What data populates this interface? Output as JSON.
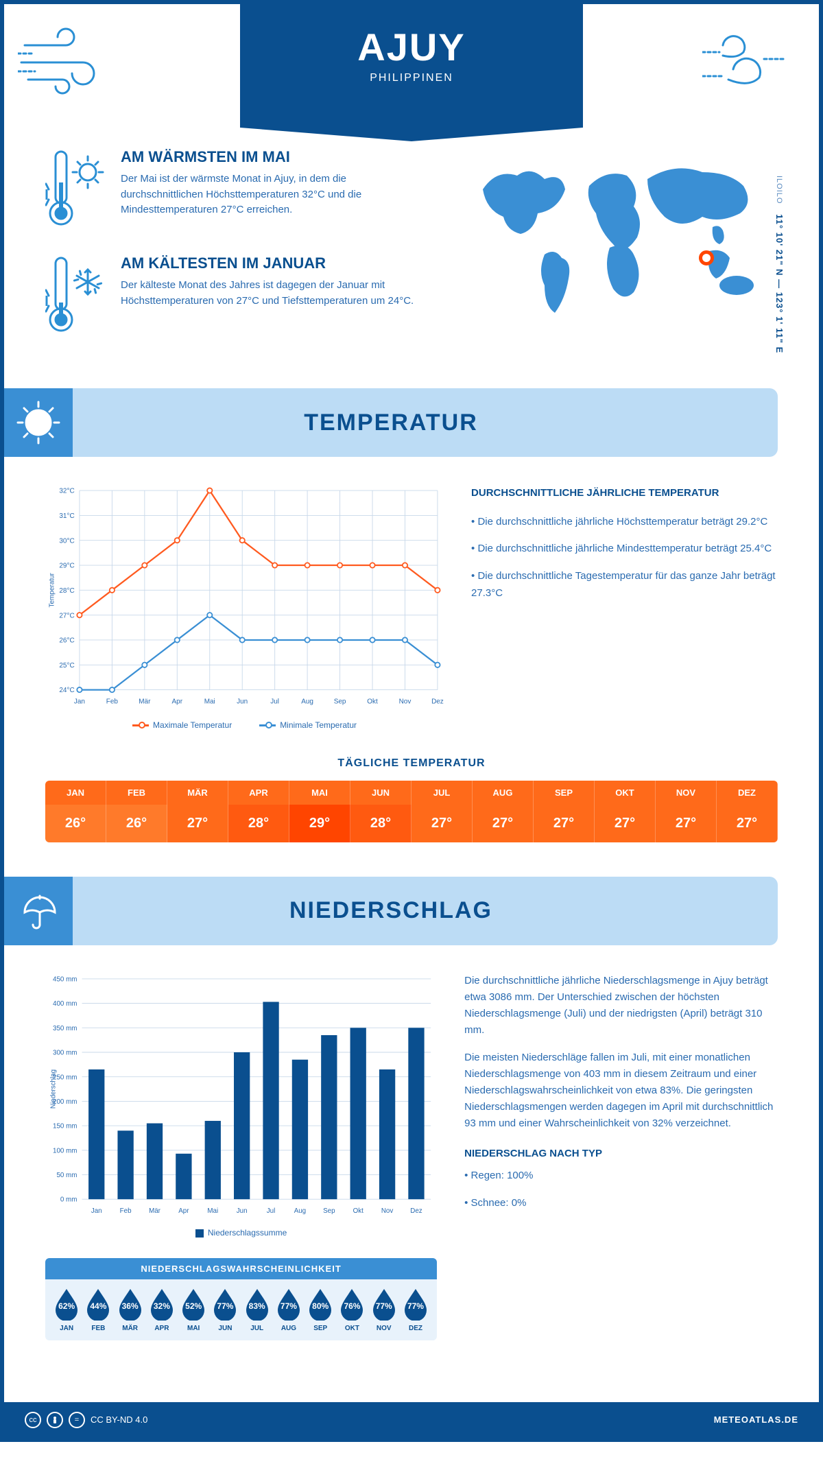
{
  "colors": {
    "primary": "#0a4f8f",
    "secondary": "#3a8fd4",
    "light": "#bcdcf5",
    "accent_warm": "#ff5a1f",
    "accent_cool": "#3a8fd4",
    "grid": "#c8d8ea",
    "text": "#2a6bb0",
    "pin": "#ff4500"
  },
  "header": {
    "title": "AJUY",
    "subtitle": "PHILIPPINEN"
  },
  "coords": {
    "lat": "11° 10' 21\" N",
    "sep": "—",
    "lon": "123° 1' 11\" E",
    "region": "ILOILO"
  },
  "warmest": {
    "title": "AM WÄRMSTEN IM MAI",
    "text": "Der Mai ist der wärmste Monat in Ajuy, in dem die durchschnittlichen Höchsttemperaturen 32°C und die Mindesttemperaturen 27°C erreichen."
  },
  "coldest": {
    "title": "AM KÄLTESTEN IM JANUAR",
    "text": "Der kälteste Monat des Jahres ist dagegen der Januar mit Höchsttemperaturen von 27°C und Tiefsttemperaturen um 24°C."
  },
  "section_temp": "TEMPERATUR",
  "section_precip": "NIEDERSCHLAG",
  "months": [
    "Jan",
    "Feb",
    "Mär",
    "Apr",
    "Mai",
    "Jun",
    "Jul",
    "Aug",
    "Sep",
    "Okt",
    "Nov",
    "Dez"
  ],
  "months_upper": [
    "JAN",
    "FEB",
    "MÄR",
    "APR",
    "MAI",
    "JUN",
    "JUL",
    "AUG",
    "SEP",
    "OKT",
    "NOV",
    "DEZ"
  ],
  "temp_chart": {
    "type": "line",
    "ylabel": "Temperatur",
    "ylim": [
      24,
      32
    ],
    "ytick_step": 1,
    "y_suffix": "°C",
    "max_label": "Maximale Temperatur",
    "min_label": "Minimale Temperatur",
    "max_color": "#ff5a1f",
    "min_color": "#3a8fd4",
    "bg_grid": "#c8d8ea",
    "max_values": [
      27,
      28,
      29,
      30,
      32,
      30,
      29,
      29,
      29,
      29,
      29,
      28
    ],
    "min_values": [
      24,
      24,
      25,
      26,
      27,
      26,
      26,
      26,
      26,
      26,
      26,
      25
    ]
  },
  "temp_stats": {
    "title": "DURCHSCHNITTLICHE JÄHRLICHE TEMPERATUR",
    "p1": "• Die durchschnittliche jährliche Höchsttemperatur beträgt 29.2°C",
    "p2": "• Die durchschnittliche jährliche Mindesttemperatur beträgt 25.4°C",
    "p3": "• Die durchschnittliche Tagestemperatur für das ganze Jahr beträgt 27.3°C"
  },
  "daily_temp": {
    "title": "TÄGLICHE TEMPERATUR",
    "values": [
      "26°",
      "26°",
      "27°",
      "28°",
      "29°",
      "28°",
      "27°",
      "27°",
      "27°",
      "27°",
      "27°",
      "27°"
    ],
    "colors": [
      "#ff7a2a",
      "#ff7a2a",
      "#ff6a1a",
      "#ff5a10",
      "#ff4500",
      "#ff5a10",
      "#ff6a1a",
      "#ff6a1a",
      "#ff6a1a",
      "#ff6a1a",
      "#ff6a1a",
      "#ff6a1a"
    ]
  },
  "precip_chart": {
    "type": "bar",
    "ylabel": "Niederschlag",
    "ylim": [
      0,
      450
    ],
    "ytick_step": 50,
    "y_suffix": " mm",
    "bar_color": "#0a4f8f",
    "bar_width": 0.55,
    "legend": "Niederschlagssumme",
    "values": [
      265,
      140,
      155,
      93,
      160,
      300,
      403,
      285,
      335,
      350,
      265,
      350
    ]
  },
  "precip_text": {
    "p1": "Die durchschnittliche jährliche Niederschlagsmenge in Ajuy beträgt etwa 3086 mm. Der Unterschied zwischen der höchsten Niederschlagsmenge (Juli) und der niedrigsten (April) beträgt 310 mm.",
    "p2": "Die meisten Niederschläge fallen im Juli, mit einer monatlichen Niederschlagsmenge von 403 mm in diesem Zeitraum und einer Niederschlagswahrscheinlichkeit von etwa 83%. Die geringsten Niederschlagsmengen werden dagegen im April mit durchschnittlich 93 mm und einer Wahrscheinlichkeit von 32% verzeichnet.",
    "type_title": "NIEDERSCHLAG NACH TYP",
    "type_rain": "• Regen: 100%",
    "type_snow": "• Schnee: 0%"
  },
  "precip_prob": {
    "title": "NIEDERSCHLAGSWAHRSCHEINLICHKEIT",
    "values": [
      "62%",
      "44%",
      "36%",
      "32%",
      "52%",
      "77%",
      "83%",
      "77%",
      "80%",
      "76%",
      "77%",
      "77%"
    ],
    "drop_color": "#0a4f8f"
  },
  "map_pin": {
    "left_pct": 76,
    "top_pct": 48
  },
  "footer": {
    "license": "CC BY-ND 4.0",
    "brand": "METEOATLAS.DE"
  }
}
